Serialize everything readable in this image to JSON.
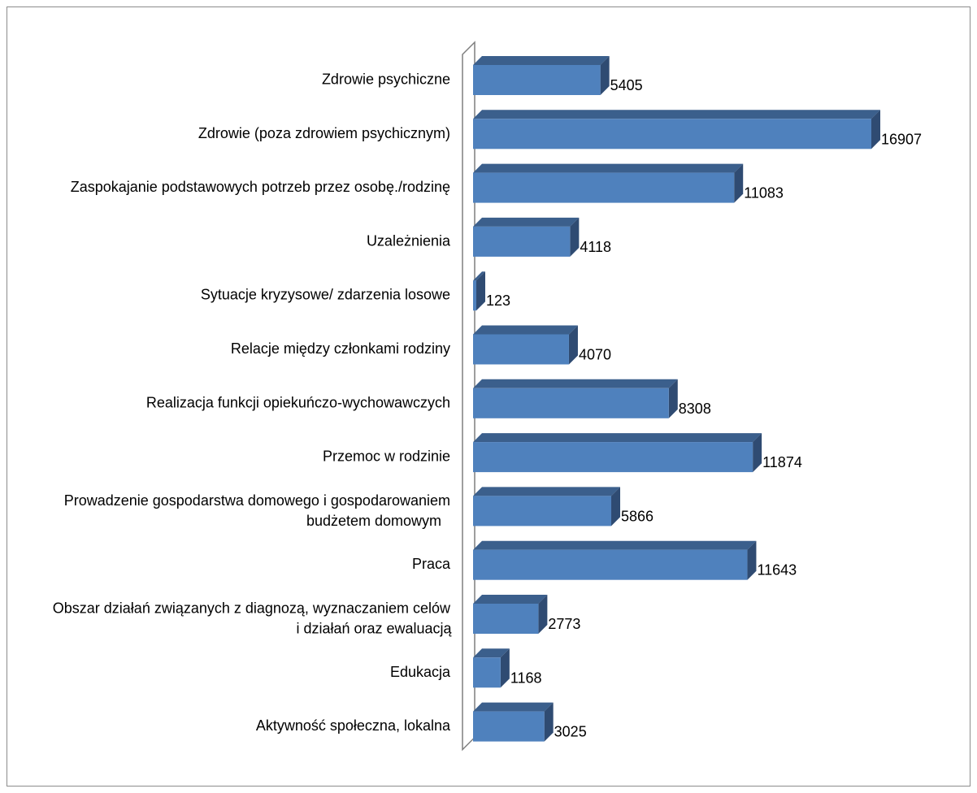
{
  "chart_data": {
    "type": "bar",
    "orientation": "horizontal",
    "style": "3d",
    "bar_color": "#4f81bd",
    "bar_top_color": "#3b5f8c",
    "bar_side_color": "#2f4b72",
    "categories": [
      "Zdrowie psychiczne",
      "Zdrowie (poza zdrowiem psychicznym)",
      "Zaspokajanie podstawowych potrzeb przez osobę./rodzinę",
      "Uzależnienia",
      "Sytuacje kryzysowe/ zdarzenia losowe",
      "Relacje między członkami rodziny",
      "Realizacja funkcji opiekuńczo-wychowawczych",
      "Przemoc w rodzinie",
      "Prowadzenie gospodarstwa domowego i gospodarowaniem budżetem domowym",
      "Praca",
      "Obszar działań związanych z diagnozą, wyznaczaniem celów i działań oraz ewaluacją",
      "Edukacja",
      "Aktywność społeczna, lokalna"
    ],
    "label_lines": [
      [
        "Zdrowie psychiczne"
      ],
      [
        "Zdrowie (poza zdrowiem psychicznym)"
      ],
      [
        "Zaspokajanie podstawowych potrzeb przez osobę./rodzinę"
      ],
      [
        "Uzależnienia"
      ],
      [
        "Sytuacje kryzysowe/ zdarzenia losowe"
      ],
      [
        "Relacje między członkami rodziny"
      ],
      [
        "Realizacja funkcji opiekuńczo-wychowawczych"
      ],
      [
        "Przemoc w rodzinie"
      ],
      [
        "Prowadzenie gospodarstwa domowego i gospodarowaniem",
        "budżetem domowym"
      ],
      [
        "Praca"
      ],
      [
        "Obszar działań związanych z diagnozą, wyznaczaniem celów",
        "i działań oraz ewaluacją"
      ],
      [
        "Edukacja"
      ],
      [
        "Aktywność społeczna, lokalna"
      ]
    ],
    "values": [
      5405,
      16907,
      11083,
      4118,
      123,
      4070,
      8308,
      11874,
      5866,
      11643,
      2773,
      1168,
      3025
    ],
    "data_labels": [
      "5405",
      "16907",
      "11083",
      "4118",
      "123",
      "4070",
      "8308",
      "11874",
      "5866",
      "11643",
      "2773",
      "1168",
      "3025"
    ],
    "xlim": [
      0,
      17500
    ],
    "grid": false,
    "legend": "none",
    "title": "",
    "xlabel": "",
    "ylabel": ""
  }
}
